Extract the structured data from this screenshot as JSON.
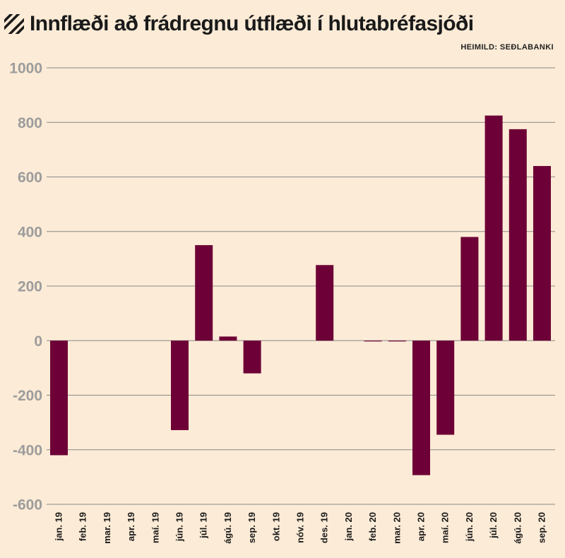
{
  "header": {
    "title": "Innflæði að frádregnu útflæði í hlutabréfasjóði",
    "source": "HEIMILD: SEÐLABANKI",
    "icon": "hatch-icon"
  },
  "colors": {
    "background": "#fcebd6",
    "bar": "#6d0036",
    "grid": "#8a8a8a",
    "tick_label": "#9c9c9c"
  },
  "chart_data": {
    "type": "bar",
    "title": "Innflæði að frádregnu útflæði í hlutabréfasjóði",
    "xlabel": "",
    "ylabel": "",
    "ylim": [
      -600,
      1000
    ],
    "yticks": [
      1000,
      800,
      600,
      400,
      200,
      0,
      -200,
      -400,
      -600
    ],
    "grid": true,
    "categories": [
      "jan. 19",
      "feb. 19",
      "mar. 19",
      "apr. 19",
      "maí. 19",
      "jún. 19",
      "júl. 19",
      "ágú. 19",
      "sep. 19",
      "okt. 19",
      "nóv. 19",
      "des. 19",
      "jan. 20",
      "feb. 20",
      "mar. 20",
      "apr. 20",
      "maí. 20",
      "jún. 20",
      "júl. 20",
      "ágú. 20",
      "sep. 20"
    ],
    "values": [
      -420,
      0,
      0,
      0,
      0,
      -328,
      350,
      15,
      -120,
      0,
      0,
      277,
      0,
      -3,
      -3,
      -493,
      -345,
      380,
      825,
      775,
      640
    ]
  }
}
